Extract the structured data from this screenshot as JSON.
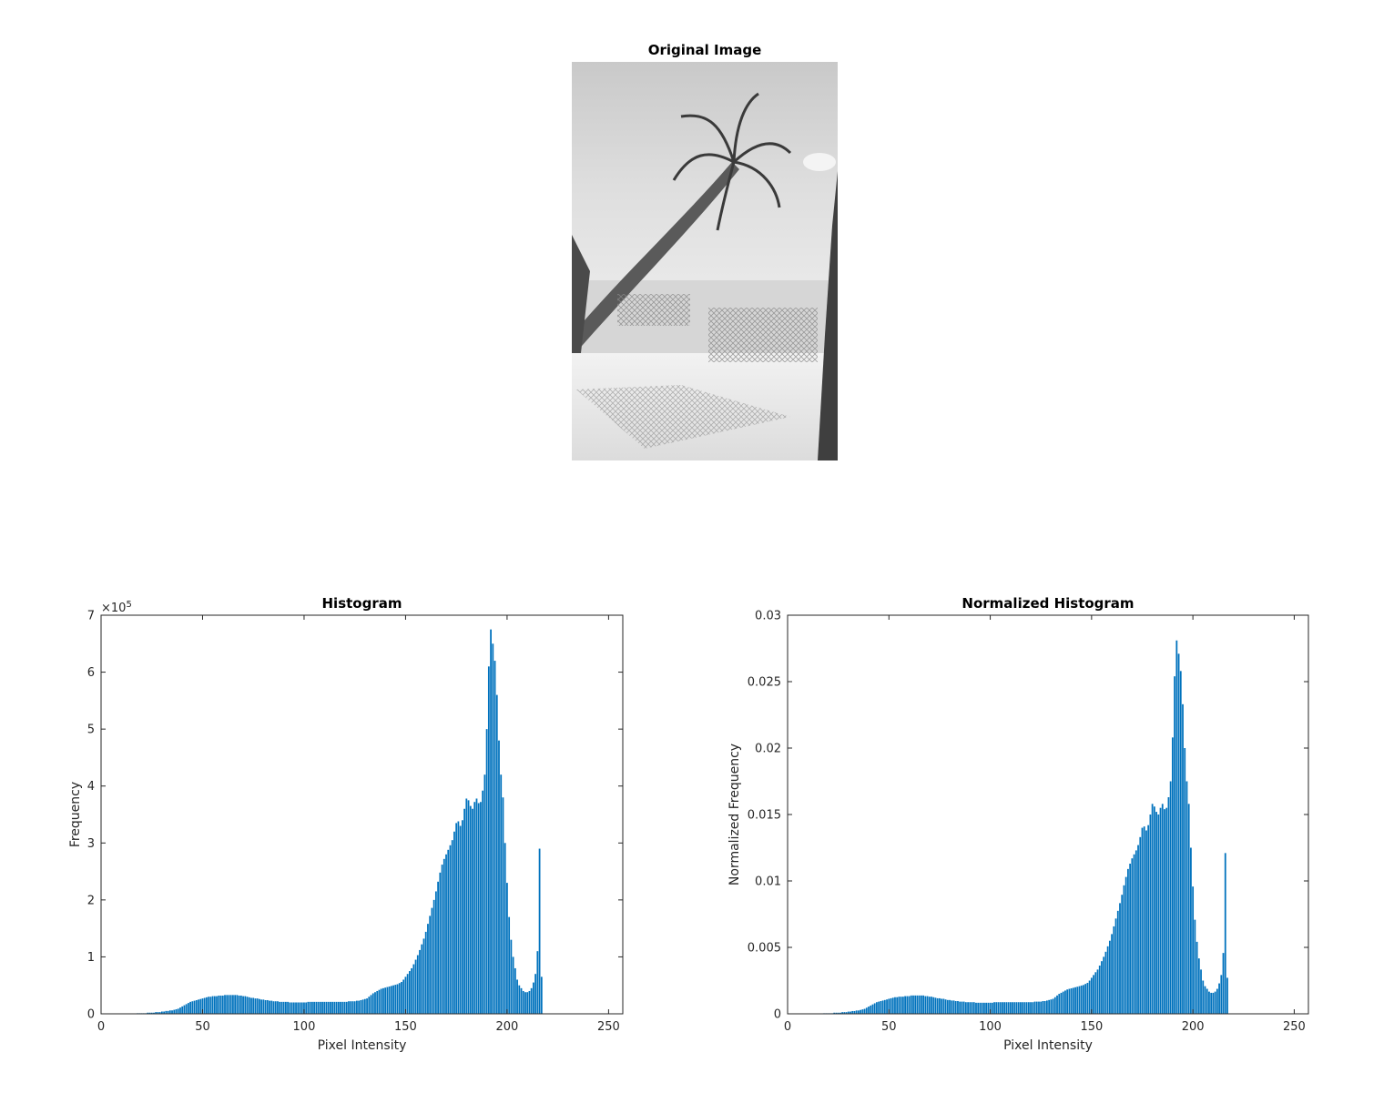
{
  "image_panel": {
    "title": "Original Image"
  },
  "colors": {
    "bar": "#0072BD",
    "axis": "#262626"
  },
  "chart_data": [
    {
      "type": "bar",
      "title": "Histogram",
      "xlabel": "Pixel Intensity",
      "ylabel": "Frequency",
      "exponent_label": "×10",
      "exponent_power": "5",
      "xlim": [
        0,
        257
      ],
      "ylim": [
        0,
        700000
      ],
      "xticks": [
        0,
        50,
        100,
        150,
        200,
        250
      ],
      "yticks": [
        0,
        100000,
        200000,
        300000,
        400000,
        500000,
        600000,
        700000
      ],
      "ytick_labels": [
        "0",
        "1",
        "2",
        "3",
        "4",
        "5",
        "6",
        "7"
      ],
      "grid": false,
      "start": 18,
      "values": [
        1000,
        1000,
        1000,
        1000,
        1000,
        2000,
        2000,
        2000,
        2000,
        3000,
        3000,
        3000,
        4000,
        4000,
        5000,
        5000,
        6000,
        6000,
        7000,
        8000,
        9000,
        11000,
        13000,
        15000,
        17000,
        19000,
        21000,
        22000,
        23000,
        24000,
        25000,
        26000,
        27000,
        28000,
        29000,
        30000,
        30000,
        31000,
        31000,
        31000,
        32000,
        32000,
        32000,
        33000,
        33000,
        33000,
        33000,
        33000,
        33000,
        33000,
        32000,
        32000,
        31000,
        31000,
        30000,
        29000,
        28000,
        28000,
        27000,
        27000,
        26000,
        25000,
        25000,
        24000,
        24000,
        23000,
        23000,
        22000,
        22000,
        22000,
        21000,
        21000,
        21000,
        21000,
        21000,
        20000,
        20000,
        20000,
        20000,
        20000,
        20000,
        20000,
        20000,
        20000,
        21000,
        21000,
        21000,
        21000,
        21000,
        21000,
        21000,
        21000,
        21000,
        21000,
        21000,
        21000,
        21000,
        21000,
        21000,
        21000,
        21000,
        21000,
        21000,
        21000,
        22000,
        22000,
        22000,
        22000,
        23000,
        23000,
        24000,
        25000,
        26000,
        27000,
        30000,
        33000,
        36000,
        38000,
        40000,
        42000,
        44000,
        45000,
        46000,
        47000,
        48000,
        49000,
        50000,
        51000,
        52000,
        54000,
        56000,
        60000,
        65000,
        70000,
        75000,
        80000,
        87000,
        95000,
        103000,
        112000,
        122000,
        132000,
        144000,
        158000,
        172000,
        186000,
        200000,
        215000,
        232000,
        248000,
        262000,
        272000,
        280000,
        288000,
        296000,
        305000,
        320000,
        335000,
        338000,
        330000,
        340000,
        360000,
        378000,
        375000,
        365000,
        360000,
        372000,
        378000,
        370000,
        372000,
        392000,
        420000,
        500000,
        610000,
        675000,
        650000,
        620000,
        560000,
        480000,
        420000,
        380000,
        300000,
        230000,
        170000,
        130000,
        100000,
        80000,
        60000,
        50000,
        45000,
        40000,
        38000,
        38000,
        40000,
        45000,
        55000,
        70000,
        110000,
        290000,
        65000
      ]
    },
    {
      "type": "bar",
      "title": "Normalized Histogram",
      "xlabel": "Pixel Intensity",
      "ylabel": "Normalized Frequency",
      "xlim": [
        0,
        257
      ],
      "ylim": [
        0,
        0.03
      ],
      "xticks": [
        0,
        50,
        100,
        150,
        200,
        250
      ],
      "yticks": [
        0,
        0.005,
        0.01,
        0.015,
        0.02,
        0.025,
        0.03
      ],
      "ytick_labels": [
        "0",
        "0.005",
        "0.01",
        "0.015",
        "0.02",
        "0.025",
        "0.03"
      ],
      "grid": false,
      "start": 18,
      "values": [
        4.17e-05,
        4.17e-05,
        4.17e-05,
        4.17e-05,
        4.17e-05,
        8.33e-05,
        8.33e-05,
        8.33e-05,
        8.33e-05,
        0.000125,
        0.000125,
        0.000125,
        0.000167,
        0.000167,
        0.000208,
        0.000208,
        0.00025,
        0.00025,
        0.000292,
        0.000333,
        0.000375,
        0.000458,
        0.000542,
        0.000625,
        0.000708,
        0.000792,
        0.000875,
        0.000917,
        0.000958,
        0.001,
        0.00104,
        0.00108,
        0.00113,
        0.00117,
        0.00121,
        0.00125,
        0.00125,
        0.00129,
        0.00129,
        0.00129,
        0.00133,
        0.00133,
        0.00133,
        0.00138,
        0.00138,
        0.00138,
        0.00138,
        0.00138,
        0.00138,
        0.00138,
        0.00133,
        0.00133,
        0.00129,
        0.00129,
        0.00125,
        0.00121,
        0.00117,
        0.00117,
        0.00113,
        0.00113,
        0.00108,
        0.00104,
        0.00104,
        0.001,
        0.001,
        0.000958,
        0.000958,
        0.000917,
        0.000917,
        0.000917,
        0.000875,
        0.000875,
        0.000875,
        0.000875,
        0.000875,
        0.000833,
        0.000833,
        0.000833,
        0.000833,
        0.000833,
        0.000833,
        0.000833,
        0.000833,
        0.000833,
        0.000875,
        0.000875,
        0.000875,
        0.000875,
        0.000875,
        0.000875,
        0.000875,
        0.000875,
        0.000875,
        0.000875,
        0.000875,
        0.000875,
        0.000875,
        0.000875,
        0.000875,
        0.000875,
        0.000875,
        0.000875,
        0.000875,
        0.000875,
        0.000917,
        0.000917,
        0.000917,
        0.000917,
        0.000958,
        0.000958,
        0.001,
        0.00104,
        0.00108,
        0.00113,
        0.00125,
        0.00138,
        0.0015,
        0.00158,
        0.00167,
        0.00175,
        0.00183,
        0.00188,
        0.00192,
        0.00196,
        0.002,
        0.00204,
        0.00208,
        0.00213,
        0.00217,
        0.00225,
        0.00233,
        0.0025,
        0.00271,
        0.00292,
        0.00313,
        0.00333,
        0.00363,
        0.00396,
        0.00429,
        0.00467,
        0.00508,
        0.0055,
        0.006,
        0.00658,
        0.00717,
        0.00775,
        0.00833,
        0.00896,
        0.00967,
        0.0103,
        0.0109,
        0.0113,
        0.0117,
        0.012,
        0.0123,
        0.0127,
        0.0133,
        0.014,
        0.0141,
        0.0138,
        0.0142,
        0.015,
        0.0158,
        0.0156,
        0.0152,
        0.015,
        0.0155,
        0.0158,
        0.0154,
        0.0155,
        0.0163,
        0.0175,
        0.0208,
        0.0254,
        0.0281,
        0.0271,
        0.0258,
        0.0233,
        0.02,
        0.0175,
        0.0158,
        0.0125,
        0.00958,
        0.00708,
        0.00542,
        0.00417,
        0.00333,
        0.0025,
        0.00208,
        0.00188,
        0.00167,
        0.00158,
        0.00158,
        0.00167,
        0.00188,
        0.00229,
        0.00292,
        0.00458,
        0.0121,
        0.00271
      ]
    }
  ]
}
